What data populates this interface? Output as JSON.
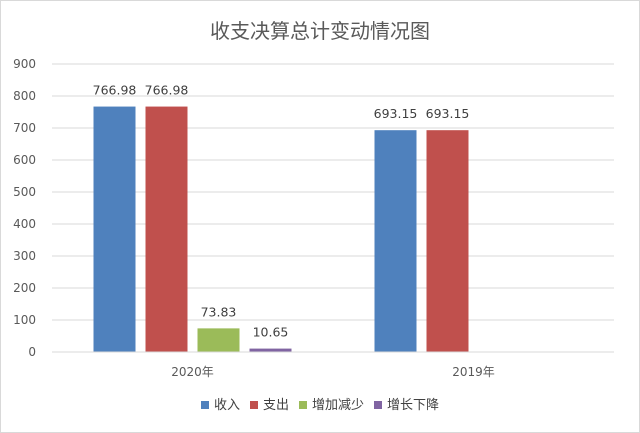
{
  "chart_data": {
    "type": "bar",
    "title": "收支决算总计变动情况图",
    "categories": [
      "2020年",
      "2019年"
    ],
    "series": [
      {
        "name": "收入",
        "color": "#4f81bd",
        "values": [
          766.98,
          693.15
        ],
        "labels": [
          "766.98",
          "693.15"
        ]
      },
      {
        "name": "支出",
        "color": "#c0504d",
        "values": [
          766.98,
          693.15
        ],
        "labels": [
          "766.98",
          "693.15"
        ]
      },
      {
        "name": "增加减少",
        "color": "#9bbb59",
        "values": [
          73.83,
          null
        ],
        "labels": [
          "73.83",
          null
        ]
      },
      {
        "name": "增长下降",
        "color": "#8064a2",
        "values": [
          10.65,
          null
        ],
        "labels": [
          "10.65",
          null
        ]
      }
    ],
    "ylim": [
      0,
      900
    ],
    "yticks": [
      0,
      100,
      200,
      300,
      400,
      500,
      600,
      700,
      800,
      900
    ],
    "ytick_labels": [
      "0",
      "100",
      "200",
      "300",
      "400",
      "500",
      "600",
      "700",
      "800",
      "900"
    ],
    "grid": true,
    "legend_position": "bottom"
  }
}
